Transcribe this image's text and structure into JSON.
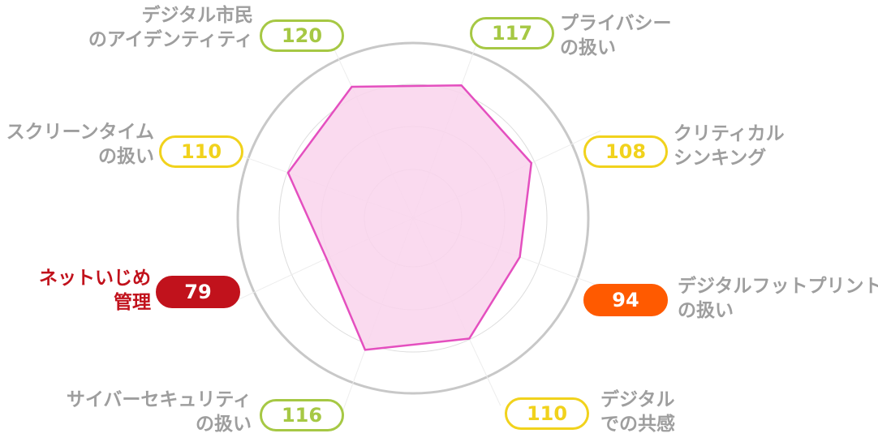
{
  "colors": {
    "green": "#a6c844",
    "yellow": "#f1d21c",
    "orange": "#ff5a00",
    "red": "#c1121c",
    "polygon_fill": "#f9d3ec",
    "polygon_stroke": "#e44fbf",
    "label_gray": "#9e9e9e",
    "outer_ring": "#c8c8c8",
    "grid": "#dddddd"
  },
  "chart_data": {
    "type": "radar",
    "categories": [
      {
        "line1": "プライバシー",
        "line2": "の扱い",
        "value": 117,
        "status": "green"
      },
      {
        "line1": "クリティカル",
        "line2": "シンキング",
        "value": 108,
        "status": "yellow"
      },
      {
        "line1": "デジタルフットプリント",
        "line2": "の扱い",
        "value": 94,
        "status": "orange"
      },
      {
        "line1": "デジタル",
        "line2": "での共感",
        "value": 110,
        "status": "yellow"
      },
      {
        "line1": "サイバーセキュリティ",
        "line2": "の扱い",
        "value": 116,
        "status": "green"
      },
      {
        "line1": "ネットいじめ",
        "line2": "管理",
        "value": 79,
        "status": "red"
      },
      {
        "line1": "スクリーンタイム",
        "line2": "の扱い",
        "value": 110,
        "status": "yellow"
      },
      {
        "line1": "デジタル市民",
        "line2": "のアイデンティティ",
        "value": 120,
        "status": "green"
      }
    ],
    "grid": true,
    "axis_labels_shown": false
  }
}
